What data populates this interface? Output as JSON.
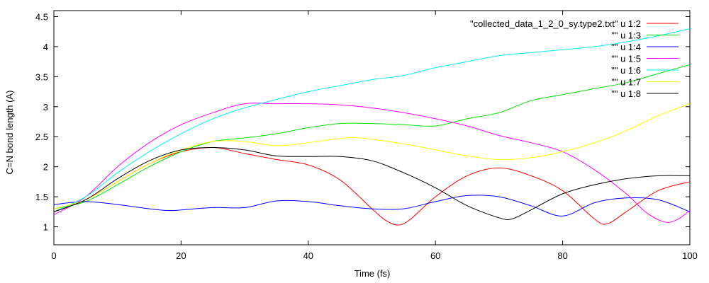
{
  "chart_data": {
    "type": "line",
    "title": "",
    "xlabel": "Time (fs)",
    "ylabel": "C=N bond length (A)",
    "xlim": [
      0,
      100
    ],
    "ylim": [
      0.7,
      4.6
    ],
    "xticks": [
      0,
      20,
      40,
      60,
      80,
      100
    ],
    "xtick_labels": [
      "0",
      "20",
      "40",
      "60",
      "80",
      "100"
    ],
    "yticks": [
      1,
      1.5,
      2,
      2.5,
      3,
      3.5,
      4,
      4.5
    ],
    "ytick_labels": [
      "1",
      "1.5",
      "2",
      "2.5",
      "3",
      "3.5",
      "4",
      "4.5"
    ],
    "grid": false,
    "legend_position": "top-right",
    "series": [
      {
        "name": "\"collected_data_1_2_0_sy.type2.txt\" u 1:2",
        "color": "#ff0000",
        "x": [
          0,
          5,
          10,
          15,
          20,
          25,
          30,
          35,
          40,
          45,
          50,
          52,
          54,
          56,
          60,
          65,
          70,
          75,
          80,
          85,
          87,
          90,
          95,
          100
        ],
        "y": [
          1.25,
          1.45,
          1.75,
          2.05,
          2.25,
          2.32,
          2.22,
          2.12,
          2.03,
          1.78,
          1.3,
          1.12,
          1.03,
          1.12,
          1.5,
          1.85,
          1.98,
          1.85,
          1.6,
          1.13,
          1.05,
          1.25,
          1.6,
          1.75
        ]
      },
      {
        "name": "\"\" u 1:3",
        "color": "#00dd00",
        "x": [
          0,
          5,
          10,
          15,
          20,
          25,
          30,
          35,
          40,
          45,
          50,
          55,
          60,
          65,
          70,
          75,
          80,
          85,
          90,
          95,
          100
        ],
        "y": [
          1.3,
          1.42,
          1.7,
          2.0,
          2.25,
          2.42,
          2.48,
          2.55,
          2.65,
          2.72,
          2.72,
          2.7,
          2.68,
          2.8,
          2.9,
          3.1,
          3.2,
          3.3,
          3.4,
          3.55,
          3.7
        ]
      },
      {
        "name": "\"\" u 1:4",
        "color": "#0000ff",
        "x": [
          0,
          5,
          10,
          15,
          18,
          20,
          25,
          30,
          35,
          40,
          45,
          50,
          55,
          60,
          65,
          70,
          75,
          80,
          85,
          90,
          95,
          100
        ],
        "y": [
          1.37,
          1.42,
          1.37,
          1.3,
          1.27,
          1.28,
          1.32,
          1.32,
          1.43,
          1.42,
          1.35,
          1.3,
          1.3,
          1.42,
          1.52,
          1.5,
          1.35,
          1.18,
          1.4,
          1.48,
          1.45,
          1.25
        ]
      },
      {
        "name": "\"\" u 1:5",
        "color": "#ff00ff",
        "x": [
          0,
          5,
          10,
          15,
          20,
          25,
          30,
          35,
          40,
          45,
          50,
          55,
          60,
          65,
          70,
          75,
          80,
          85,
          90,
          93,
          96,
          98,
          100
        ],
        "y": [
          1.2,
          1.5,
          2.0,
          2.4,
          2.7,
          2.9,
          3.05,
          3.05,
          3.05,
          3.03,
          2.98,
          2.9,
          2.8,
          2.68,
          2.52,
          2.4,
          2.25,
          1.95,
          1.55,
          1.25,
          1.08,
          1.12,
          1.27
        ]
      },
      {
        "name": "\"\" u 1:6",
        "color": "#00eeee",
        "x": [
          0,
          5,
          10,
          15,
          20,
          25,
          30,
          35,
          40,
          45,
          50,
          55,
          60,
          65,
          70,
          75,
          80,
          85,
          90,
          95,
          100
        ],
        "y": [
          1.25,
          1.5,
          1.9,
          2.25,
          2.55,
          2.8,
          2.98,
          3.12,
          3.25,
          3.35,
          3.45,
          3.52,
          3.65,
          3.75,
          3.85,
          3.9,
          3.95,
          4.0,
          4.08,
          4.18,
          4.3
        ]
      },
      {
        "name": "\"\" u 1:7",
        "color": "#ffff00",
        "x": [
          0,
          5,
          10,
          15,
          20,
          25,
          30,
          35,
          40,
          45,
          48,
          55,
          60,
          65,
          70,
          75,
          80,
          85,
          90,
          95,
          100
        ],
        "y": [
          1.3,
          1.45,
          1.75,
          2.05,
          2.28,
          2.42,
          2.42,
          2.35,
          2.4,
          2.47,
          2.48,
          2.38,
          2.28,
          2.18,
          2.12,
          2.15,
          2.25,
          2.4,
          2.6,
          2.85,
          3.05
        ]
      },
      {
        "name": "\"\" u 1:8",
        "color": "#000000",
        "x": [
          0,
          5,
          10,
          15,
          20,
          25,
          30,
          35,
          40,
          45,
          50,
          55,
          60,
          65,
          70,
          72,
          75,
          80,
          85,
          90,
          95,
          100
        ],
        "y": [
          1.25,
          1.45,
          1.8,
          2.1,
          2.28,
          2.32,
          2.28,
          2.18,
          2.17,
          2.17,
          2.1,
          1.9,
          1.65,
          1.35,
          1.15,
          1.13,
          1.28,
          1.55,
          1.7,
          1.8,
          1.85,
          1.85
        ]
      }
    ]
  }
}
